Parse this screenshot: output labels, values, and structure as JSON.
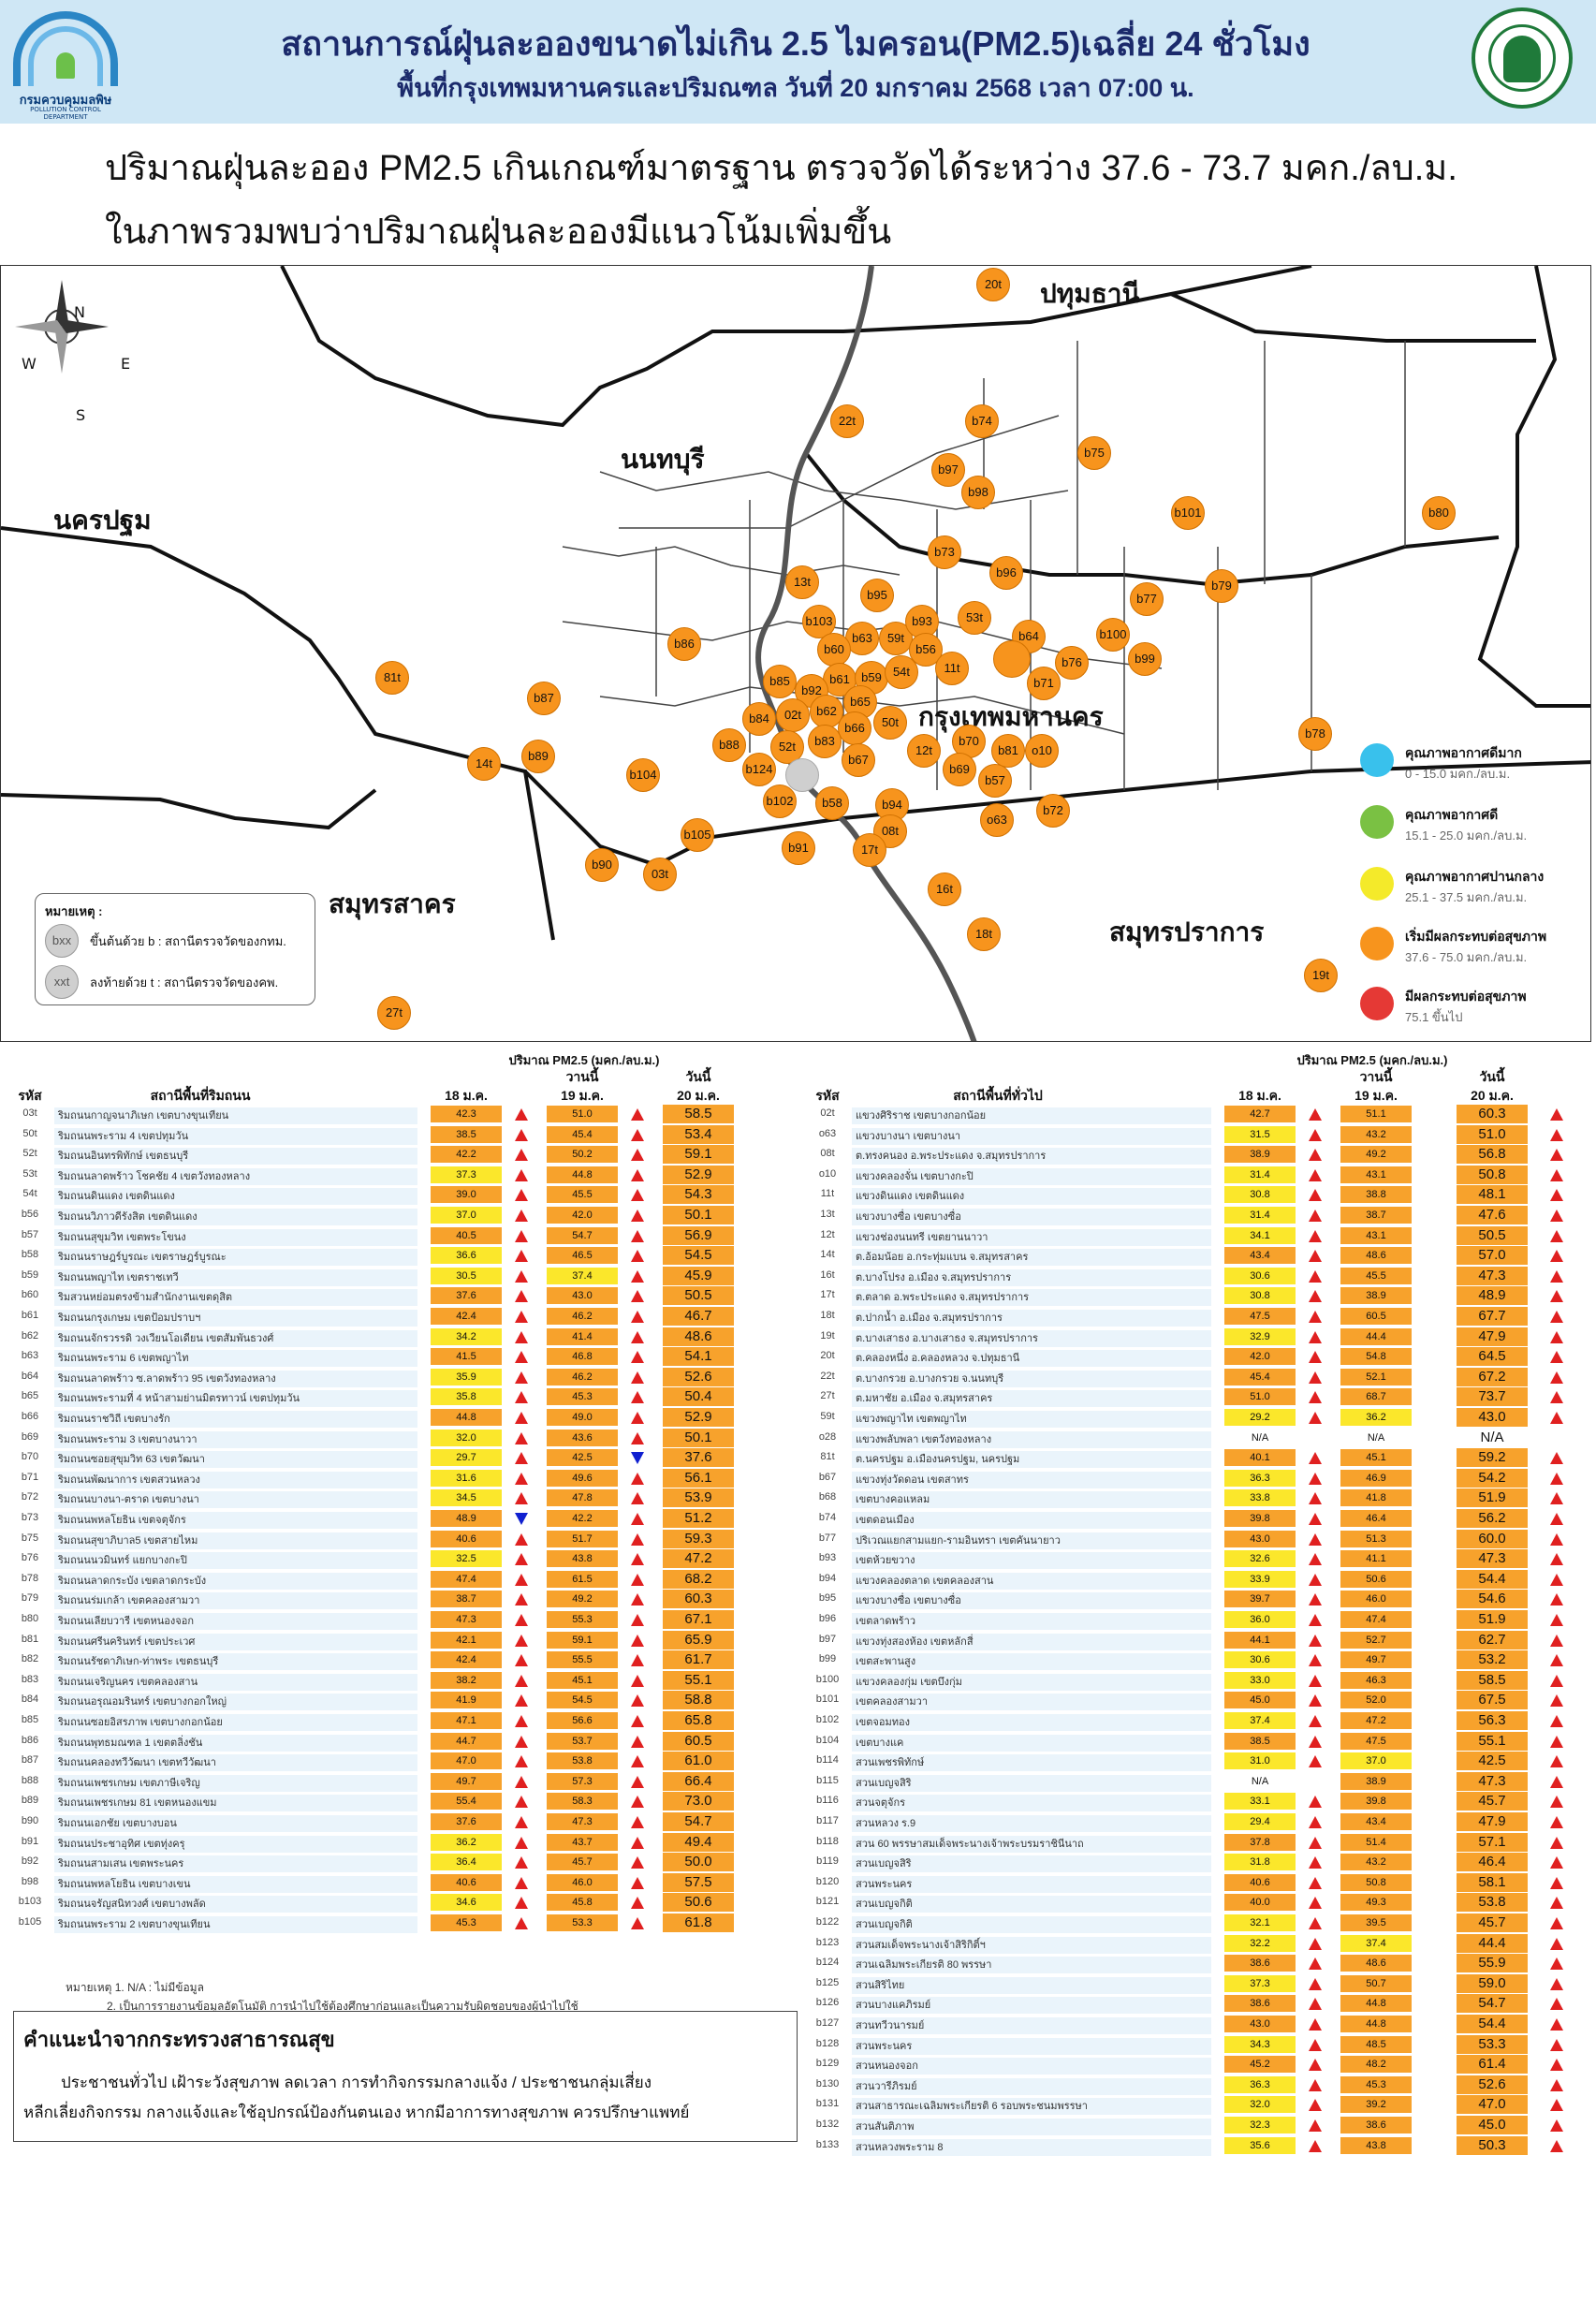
{
  "header": {
    "title_line1": "สถานการณ์ฝุ่นละอองขนาดไม่เกิน 2.5 ไมครอน(PM2.5)เฉลี่ย 24 ชั่วโมง",
    "title_line2": "พื้นที่กรุงเทพมหานครและปริมณฑล วันที่ 20 มกราคม 2568 เวลา 07:00 น.",
    "logo_left_text": "กรมควบคุมมลพิษ",
    "logo_left_sub": "POLLUTION CONTROL DEPARTMENT"
  },
  "summary": {
    "line1": "ปริมาณฝุ่นละออง PM2.5 เกินเกณฑ์มาตรฐาน ตรวจวัดได้ระหว่าง 37.6 - 73.7 มคก./ลบ.ม.",
    "line2": "ในภาพรวมพบว่าปริมาณฝุ่นละอองมีแนวโน้มเพิ่มขึ้น"
  },
  "map": {
    "provinces": [
      "ปทุมธานี",
      "นนทบุรี",
      "นครปฐม",
      "กรุงเทพมหานคร",
      "สมุทรสาคร",
      "สมุทรปราการ"
    ],
    "compass": {
      "n": "N",
      "s": "S",
      "e": "E",
      "w": "W"
    },
    "stations": [
      "20t",
      "22t",
      "b74",
      "b75",
      "b97",
      "b98",
      "b101",
      "b80",
      "13t",
      "b95",
      "b73",
      "b96",
      "b77",
      "b79",
      "b103",
      "b63",
      "59t",
      "b93",
      "53t",
      "b60",
      "b56",
      "b64",
      "b100",
      "b86",
      "b76",
      "b99",
      "b71",
      "81t",
      "b85",
      "b61",
      "b59",
      "54t",
      "11t",
      "b87",
      "b92",
      "b62",
      "b65",
      "b84",
      "02t",
      "b66",
      "50t",
      "b88",
      "52t",
      "b83",
      "b70",
      "b81",
      "o10",
      "b78",
      "14t",
      "b89",
      "b124",
      "b67",
      "12t",
      "b69",
      "b57",
      "b104",
      "b102",
      "b58",
      "b94",
      "b72",
      "o63",
      "b105",
      "08t",
      "b91",
      "17t",
      "b90",
      "03t",
      "16t",
      "18t",
      "19t",
      "27t"
    ],
    "na_station": "b124-gray",
    "note_title": "หมายเหตุ :",
    "note_b": "ขึ้นต้นด้วย b : สถานีตรวจวัดของกทม.",
    "note_t": "ลงท้ายด้วย t : สถานีตรวจวัดของคพ.",
    "note_b_icon": "bxx",
    "note_t_icon": "xxt"
  },
  "aqi_legend": [
    {
      "label": "คุณภาพอากาศดีมาก",
      "range": "0 - 15.0 มคก./ลบ.ม.",
      "color": "#39c1ec"
    },
    {
      "label": "คุณภาพอากาศดี",
      "range": "15.1 - 25.0 มคก./ลบ.ม.",
      "color": "#7ac143"
    },
    {
      "label": "คุณภาพอากาศปานกลาง",
      "range": "25.1 - 37.5 มคก./ลบ.ม.",
      "color": "#f4ea2a"
    },
    {
      "label": "เริ่มมีผลกระทบต่อสุขภาพ",
      "range": "37.6 - 75.0 มคก./ลบ.ม.",
      "color": "#f7941d"
    },
    {
      "label": "มีผลกระทบต่อสุขภาพ",
      "range": "75.1 ขึ้นไป",
      "color": "#e53935"
    }
  ],
  "table_headers": {
    "unit": "ปริมาณ PM2.5 (มคก./ลบ.ม.)",
    "yesterday": "วานนี้",
    "today": "วันนี้",
    "code": "รหัส",
    "road_station": "สถานีพื้นที่ริมถนน",
    "general_station": "สถานีพื้นที่ทั่วไป",
    "d18": "18 ม.ค.",
    "d19": "19 ม.ค.",
    "d20": "20 ม.ค."
  },
  "road_rows": [
    [
      "03t",
      "ริมถนนกาญจนาภิเษก เขตบางขุนเทียน",
      "42.3",
      "51.0",
      "58.5",
      "u",
      "u"
    ],
    [
      "50t",
      "ริมถนนพระราม 4 เขตปทุมวัน",
      "38.5",
      "45.4",
      "53.4",
      "u",
      "u"
    ],
    [
      "52t",
      "ริมถนนอินทรพิทักษ์ เขตธนบุรี",
      "42.2",
      "50.2",
      "59.1",
      "u",
      "u"
    ],
    [
      "53t",
      "ริมถนนลาดพร้าว โชคชัย 4 เขตวังทองหลาง",
      "37.3",
      "44.8",
      "52.9",
      "u",
      "u"
    ],
    [
      "54t",
      "ริมถนนดินแดง เขตดินแดง",
      "39.0",
      "45.5",
      "54.3",
      "u",
      "u"
    ],
    [
      "b56",
      "ริมถนนวิภาวดีรังสิต เขตดินแดง",
      "37.0",
      "42.0",
      "50.1",
      "u",
      "u"
    ],
    [
      "b57",
      "ริมถนนสุขุมวิท เขตพระโขนง",
      "40.5",
      "54.7",
      "56.9",
      "u",
      "u"
    ],
    [
      "b58",
      "ริมถนนราษฎร์บูรณะ เขตราษฎร์บูรณะ",
      "36.6",
      "46.5",
      "54.5",
      "u",
      "u"
    ],
    [
      "b59",
      "ริมถนนพญาไท เขตราชเทวี",
      "30.5",
      "37.4",
      "45.9",
      "u",
      "u"
    ],
    [
      "b60",
      "ริมสวนหย่อมตรงข้ามสำนักงานเขตดุสิต",
      "37.6",
      "43.0",
      "50.5",
      "u",
      "u"
    ],
    [
      "b61",
      "ริมถนนกรุงเกษม เขตป้อมปราบฯ",
      "42.4",
      "46.2",
      "46.7",
      "u",
      "u"
    ],
    [
      "b62",
      "ริมถนนจักรวรรดิ วงเวียนโอเดียน เขตสัมพันธวงศ์",
      "34.2",
      "41.4",
      "48.6",
      "u",
      "u"
    ],
    [
      "b63",
      "ริมถนนพระราม 6 เขตพญาไท",
      "41.5",
      "46.8",
      "54.1",
      "u",
      "u"
    ],
    [
      "b64",
      "ริมถนนลาดพร้าว ซ.ลาดพร้าว 95 เขตวังทองหลาง",
      "35.9",
      "46.2",
      "52.6",
      "u",
      "u"
    ],
    [
      "b65",
      "ริมถนนพระรามที่ 4 หน้าสามย่านมิตรทาวน์ เขตปทุมวัน",
      "35.8",
      "45.3",
      "50.4",
      "u",
      "u"
    ],
    [
      "b66",
      "ริมถนนราชวิถี เขตบางรัก",
      "44.8",
      "49.0",
      "52.9",
      "u",
      "u"
    ],
    [
      "b69",
      "ริมถนนพระราม 3 เขตบางนาวา",
      "32.0",
      "43.6",
      "50.1",
      "u",
      "u"
    ],
    [
      "b70",
      "ริมถนนซอยสุขุมวิท 63 เขตวัฒนา",
      "29.7",
      "42.5",
      "37.6",
      "u",
      "d"
    ],
    [
      "b71",
      "ริมถนนพัฒนาการ เขตสวนหลวง",
      "31.6",
      "49.6",
      "56.1",
      "u",
      "u"
    ],
    [
      "b72",
      "ริมถนนบางนา-ตราด เขตบางนา",
      "34.5",
      "47.8",
      "53.9",
      "u",
      "u"
    ],
    [
      "b73",
      "ริมถนนพหลโยธิน เขตจตุจักร",
      "48.9",
      "42.2",
      "51.2",
      "d",
      "u"
    ],
    [
      "b75",
      "ริมถนนสุขาภิบาล5 เขตสายไหม",
      "40.6",
      "51.7",
      "59.3",
      "u",
      "u"
    ],
    [
      "b76",
      "ริมถนนนวมินทร์ แยกบางกะปิ",
      "32.5",
      "43.8",
      "47.2",
      "u",
      "u"
    ],
    [
      "b78",
      "ริมถนนลาดกระบัง เขตลาดกระบัง",
      "47.4",
      "61.5",
      "68.2",
      "u",
      "u"
    ],
    [
      "b79",
      "ริมถนนร่มเกล้า เขตคลองสามวา",
      "38.7",
      "49.2",
      "60.3",
      "u",
      "u"
    ],
    [
      "b80",
      "ริมถนนเลียบวารี เขตหนองจอก",
      "47.3",
      "55.3",
      "67.1",
      "u",
      "u"
    ],
    [
      "b81",
      "ริมถนนศรีนครินทร์ เขตประเวศ",
      "42.1",
      "59.1",
      "65.9",
      "u",
      "u"
    ],
    [
      "b82",
      "ริมถนนรัชดาภิเษก-ท่าพระ เขตธนบุรี",
      "42.4",
      "55.5",
      "61.7",
      "u",
      "u"
    ],
    [
      "b83",
      "ริมถนนเจริญนคร เขตคลองสาน",
      "38.2",
      "45.1",
      "55.1",
      "u",
      "u"
    ],
    [
      "b84",
      "ริมถนนอรุณอมรินทร์ เขตบางกอกใหญ่",
      "41.9",
      "54.5",
      "58.8",
      "u",
      "u"
    ],
    [
      "b85",
      "ริมถนนซอยอิสรภาพ เขตบางกอกน้อย",
      "47.1",
      "56.6",
      "65.8",
      "u",
      "u"
    ],
    [
      "b86",
      "ริมถนนพุทธมณฑล 1 เขตตลิ่งชัน",
      "44.7",
      "53.7",
      "60.5",
      "u",
      "u"
    ],
    [
      "b87",
      "ริมถนนคลองทวีวัฒนา เขตทวีวัฒนา",
      "47.0",
      "53.8",
      "61.0",
      "u",
      "u"
    ],
    [
      "b88",
      "ริมถนนเพชรเกษม เขตภาษีเจริญ",
      "49.7",
      "57.3",
      "66.4",
      "u",
      "u"
    ],
    [
      "b89",
      "ริมถนนเพชรเกษม 81 เขตหนองแขม",
      "55.4",
      "58.3",
      "73.0",
      "u",
      "u"
    ],
    [
      "b90",
      "ริมถนนเอกชัย เขตบางบอน",
      "37.6",
      "47.3",
      "54.7",
      "u",
      "u"
    ],
    [
      "b91",
      "ริมถนนประชาอุทิศ เขตทุ่งครุ",
      "36.2",
      "43.7",
      "49.4",
      "u",
      "u"
    ],
    [
      "b92",
      "ริมถนนสามเสน เขตพระนคร",
      "36.4",
      "45.7",
      "50.0",
      "u",
      "u"
    ],
    [
      "b98",
      "ริมถนนพหลโยธิน เขตบางเขน",
      "40.6",
      "46.0",
      "57.5",
      "u",
      "u"
    ],
    [
      "b103",
      "ริมถนนจรัญสนิทวงศ์ เขตบางพลัด",
      "34.6",
      "45.8",
      "50.6",
      "u",
      "u"
    ],
    [
      "b105",
      "ริมถนนพระราม 2 เขตบางขุนเทียน",
      "45.3",
      "53.3",
      "61.8",
      "u",
      "u"
    ]
  ],
  "general_rows": [
    [
      "02t",
      "แขวงศิริราช เขตบางกอกน้อย",
      "42.7",
      "51.1",
      "60.3",
      "u",
      "u"
    ],
    [
      "o63",
      "แขวงบางนา เขตบางนา",
      "31.5",
      "43.2",
      "51.0",
      "u",
      "u"
    ],
    [
      "08t",
      "ต.ทรงคนอง อ.พระประแดง จ.สมุทรปราการ",
      "38.9",
      "49.2",
      "56.8",
      "u",
      "u"
    ],
    [
      "o10",
      "แขวงคลองจั่น เขตบางกะปิ",
      "31.4",
      "43.1",
      "50.8",
      "u",
      "u"
    ],
    [
      "11t",
      "แขวงดินแดง เขตดินแดง",
      "30.8",
      "38.8",
      "48.1",
      "u",
      "u"
    ],
    [
      "13t",
      "แขวงบางซื่อ เขตบางซื่อ",
      "31.4",
      "38.7",
      "47.6",
      "u",
      "u"
    ],
    [
      "12t",
      "แขวงช่องนนทรี เขตยานนาวา",
      "34.1",
      "43.1",
      "50.5",
      "u",
      "u"
    ],
    [
      "14t",
      "ต.อ้อมน้อย อ.กระทุ่มแบน จ.สมุทรสาคร",
      "43.4",
      "48.6",
      "57.0",
      "u",
      "u"
    ],
    [
      "16t",
      "ต.บางโปรง อ.เมือง จ.สมุทรปราการ",
      "30.6",
      "45.5",
      "47.3",
      "u",
      "u"
    ],
    [
      "17t",
      "ต.ตลาด อ.พระประแดง จ.สมุทรปราการ",
      "30.8",
      "38.9",
      "48.9",
      "u",
      "u"
    ],
    [
      "18t",
      "ต.ปากน้ำ อ.เมือง จ.สมุทรปราการ",
      "47.5",
      "60.5",
      "67.7",
      "u",
      "u"
    ],
    [
      "19t",
      "ต.บางเสาธง อ.บางเสาธง จ.สมุทรปราการ",
      "32.9",
      "44.4",
      "47.9",
      "u",
      "u"
    ],
    [
      "20t",
      "ต.คลองหนึ่ง อ.คลองหลวง จ.ปทุมธานี",
      "42.0",
      "54.8",
      "64.5",
      "u",
      "u"
    ],
    [
      "22t",
      "ต.บางกรวย อ.บางกรวย จ.นนทบุรี",
      "45.4",
      "52.1",
      "67.2",
      "u",
      "u"
    ],
    [
      "27t",
      "ต.มหาชัย อ.เมือง จ.สมุทรสาคร",
      "51.0",
      "68.7",
      "73.7",
      "u",
      "u"
    ],
    [
      "59t",
      "แขวงพญาไท เขตพญาไท",
      "29.2",
      "36.2",
      "43.0",
      "u",
      "u"
    ],
    [
      "o28",
      "แขวงพลับพลา เขตวังทองหลาง",
      "N/A",
      "N/A",
      "N/A",
      "",
      ""
    ],
    [
      "81t",
      "ต.นครปฐม อ.เมืองนครปฐม, นครปฐม",
      "40.1",
      "45.1",
      "59.2",
      "u",
      "u"
    ],
    [
      "b67",
      "แขวงทุ่งวัดดอน เขตสาทร",
      "36.3",
      "46.9",
      "54.2",
      "u",
      "u"
    ],
    [
      "b68",
      "เขตบางคอแหลม",
      "33.8",
      "41.8",
      "51.9",
      "u",
      "u"
    ],
    [
      "b74",
      "เขตดอนเมือง",
      "39.8",
      "46.4",
      "56.2",
      "u",
      "u"
    ],
    [
      "b77",
      "ปริเวณแยกสามแยก-รามอินทรา เขตคันนายาว",
      "43.0",
      "51.3",
      "60.0",
      "u",
      "u"
    ],
    [
      "b93",
      "เขตห้วยขวาง",
      "32.6",
      "41.1",
      "47.3",
      "u",
      "u"
    ],
    [
      "b94",
      "แขวงคลองตลาด เขตคลองสาน",
      "33.9",
      "50.6",
      "54.4",
      "u",
      "u"
    ],
    [
      "b95",
      "แขวงบางซื่อ เขตบางซื่อ",
      "39.7",
      "46.0",
      "54.6",
      "u",
      "u"
    ],
    [
      "b96",
      "เขตลาดพร้าว",
      "36.0",
      "47.4",
      "51.9",
      "u",
      "u"
    ],
    [
      "b97",
      "แขวงทุ่งสองห้อง เขตหลักสี่",
      "44.1",
      "52.7",
      "62.7",
      "u",
      "u"
    ],
    [
      "b99",
      "เขตสะพานสูง",
      "30.6",
      "49.7",
      "53.2",
      "u",
      "u"
    ],
    [
      "b100",
      "แขวงคลองกุ่ม เขตบึงกุ่ม",
      "33.0",
      "46.3",
      "58.5",
      "u",
      "u"
    ],
    [
      "b101",
      "เขตคลองสามวา",
      "45.0",
      "52.0",
      "67.5",
      "u",
      "u"
    ],
    [
      "b102",
      "เขตจอมทอง",
      "37.4",
      "47.2",
      "56.3",
      "u",
      "u"
    ],
    [
      "b104",
      "เขตบางแค",
      "38.5",
      "47.5",
      "55.1",
      "u",
      "u"
    ],
    [
      "b114",
      "สวนเพชรพิทักษ์",
      "31.0",
      "37.0",
      "42.5",
      "u",
      "u"
    ],
    [
      "b115",
      "สวนเบญจสิริ",
      "N/A",
      "38.9",
      "47.3",
      "",
      "u"
    ],
    [
      "b116",
      "สวนจตุจักร",
      "33.1",
      "39.8",
      "45.7",
      "u",
      "u"
    ],
    [
      "b117",
      "สวนหลวง ร.9",
      "29.4",
      "43.4",
      "47.9",
      "u",
      "u"
    ],
    [
      "b118",
      "สวน 60 พรรษาสมเด็จพระนางเจ้าพระบรมราชินีนาถ",
      "37.8",
      "51.4",
      "57.1",
      "u",
      "u"
    ],
    [
      "b119",
      "สวนเบญจสิริ",
      "31.8",
      "43.2",
      "46.4",
      "u",
      "u"
    ],
    [
      "b120",
      "สวนพระนคร",
      "40.6",
      "50.8",
      "58.1",
      "u",
      "u"
    ],
    [
      "b121",
      "สวนเบญจกิติ",
      "40.0",
      "49.3",
      "53.8",
      "u",
      "u"
    ],
    [
      "b122",
      "สวนเบญจกิติ",
      "32.1",
      "39.5",
      "45.7",
      "u",
      "u"
    ],
    [
      "b123",
      "สวนสมเด็จพระนางเจ้าสิริกิติ์ฯ",
      "32.2",
      "37.4",
      "44.4",
      "u",
      "u"
    ],
    [
      "b124",
      "สวนเฉลิมพระเกียรติ 80 พรรษา",
      "38.6",
      "48.6",
      "55.9",
      "u",
      "u"
    ],
    [
      "b125",
      "สวนสิริไทย",
      "37.3",
      "50.7",
      "59.0",
      "u",
      "u"
    ],
    [
      "b126",
      "สวนบางแคภิรมย์",
      "38.6",
      "44.8",
      "54.7",
      "u",
      "u"
    ],
    [
      "b127",
      "สวนทวีวนารมย์",
      "43.0",
      "44.8",
      "54.4",
      "u",
      "u"
    ],
    [
      "b128",
      "สวนพระนคร",
      "34.3",
      "48.5",
      "53.3",
      "u",
      "u"
    ],
    [
      "b129",
      "สวนหนองจอก",
      "45.2",
      "48.2",
      "61.4",
      "u",
      "u"
    ],
    [
      "b130",
      "สวนวารีภิรมย์",
      "36.3",
      "45.3",
      "52.6",
      "u",
      "u"
    ],
    [
      "b131",
      "สวนสาธารณะเฉลิมพระเกียรติ 6 รอบพระชนมพรรษา",
      "32.0",
      "39.2",
      "47.0",
      "u",
      "u"
    ],
    [
      "b132",
      "สวนสันติภาพ",
      "32.3",
      "38.6",
      "45.0",
      "u",
      "u"
    ],
    [
      "b133",
      "สวนหลวงพระราม 8",
      "35.6",
      "43.8",
      "50.3",
      "u",
      "u"
    ]
  ],
  "notes": {
    "line1": "หมายเหตุ 1. N/A : ไม่มีข้อมูล",
    "line2": "2. เป็นการรายงานข้อมูลอัตโนมัติ การนำไปใช้ต้องศึกษาก่อนและเป็นความรับผิดชอบของผู้นำไปใช้"
  },
  "advice": {
    "title": "คำแนะนำจากกระทรวงสาธารณสุข",
    "line1": "ประชาชนทั่วไป เฝ้าระวังสุขภาพ ลดเวลา การทำกิจกรรมกลางแจ้ง / ประชาชนกลุ่มเสี่ยง",
    "line2": "หลีกเลี่ยงกิจกรรม กลางแจ้งและใช้อุปกรณ์ป้องกันตนเอง หากมีอาการทางสุขภาพ ควรปรึกษาแพทย์"
  }
}
